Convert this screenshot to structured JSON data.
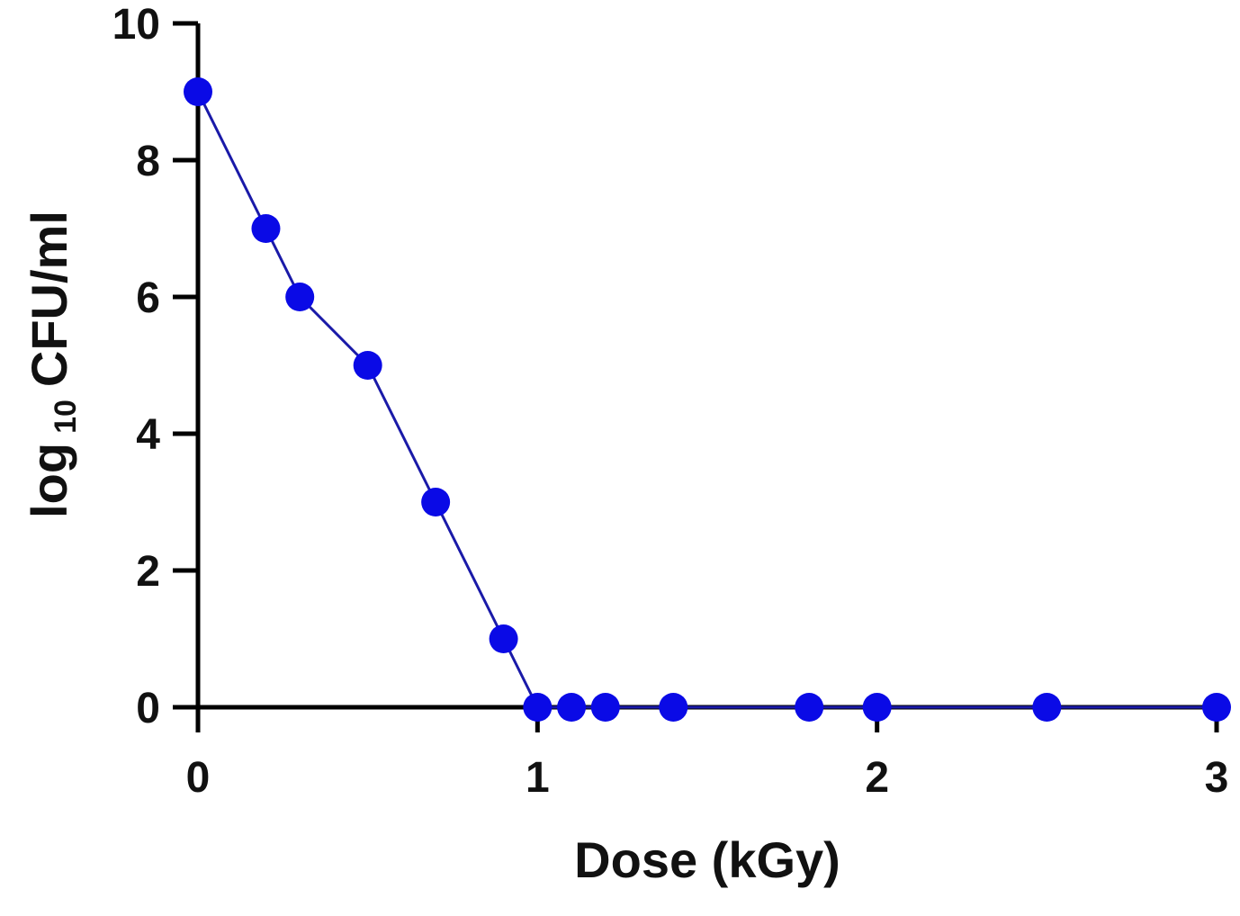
{
  "chart_data": {
    "type": "line",
    "title": "",
    "xlabel": "Dose (kGy)",
    "ylabel": {
      "prefix": "log",
      "subscript": "10",
      "suffix": "CFU/ml"
    },
    "xlim": [
      0,
      3
    ],
    "ylim": [
      0,
      10
    ],
    "x_ticks": [
      0,
      1,
      2,
      3
    ],
    "y_ticks": [
      0,
      2,
      4,
      6,
      8,
      10
    ],
    "x_tick_labels": [
      "0",
      "1",
      "2",
      "3"
    ],
    "y_tick_labels": [
      "0",
      "2",
      "4",
      "6",
      "8",
      "10"
    ],
    "grid": false,
    "legend": "none",
    "series": [
      {
        "x": [
          0,
          0.2,
          0.3,
          0.5,
          0.7,
          0.9,
          1.0,
          1.1,
          1.2,
          1.4,
          1.8,
          2.0,
          2.5,
          3.0
        ],
        "y": [
          9,
          7,
          6,
          5,
          3,
          1,
          0,
          0,
          0,
          0,
          0,
          0,
          0,
          0
        ],
        "color": "#0a0ae6",
        "line_color": "#1a1aa8"
      }
    ]
  }
}
